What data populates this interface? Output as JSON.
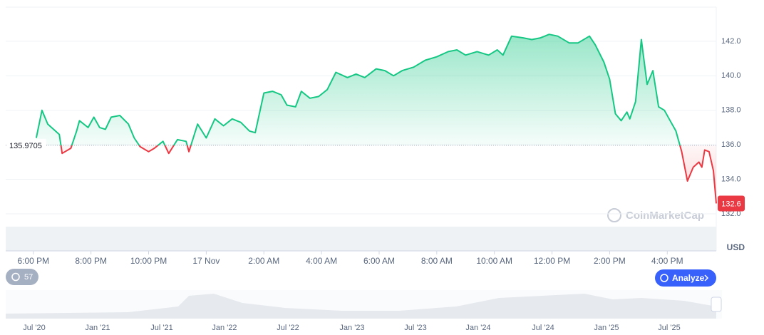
{
  "chart_data": {
    "type": "line",
    "x": [
      18.1,
      18.3,
      18.5,
      18.9,
      19.0,
      19.3,
      19.5,
      19.6,
      19.9,
      20.1,
      20.3,
      20.5,
      20.7,
      21.0,
      21.3,
      21.5,
      21.7,
      22.0,
      22.2,
      22.5,
      22.7,
      23.0,
      23.3,
      23.4,
      23.7,
      24.0,
      24.3,
      24.6,
      24.9,
      25.2,
      25.5,
      25.7,
      26.0,
      26.3,
      26.6,
      26.8,
      27.1,
      27.3,
      27.6,
      27.9,
      28.2,
      28.5,
      28.9,
      29.2,
      29.5,
      29.9,
      30.2,
      30.5,
      30.8,
      31.2,
      31.6,
      32.0,
      32.4,
      32.7,
      33.0,
      33.4,
      33.8,
      34.1,
      34.3,
      34.6,
      35.0,
      35.3,
      35.6,
      35.9,
      36.2,
      36.6,
      36.9,
      37.3,
      37.5,
      37.8,
      38.0,
      38.2,
      38.4,
      38.6,
      38.7,
      38.9,
      39.1,
      39.3,
      39.5,
      39.7,
      39.9,
      40.1,
      40.3,
      40.5,
      40.7,
      40.9,
      41.1,
      41.2,
      41.3,
      41.45,
      41.6,
      41.7
    ],
    "values": [
      136.4,
      138.0,
      137.2,
      136.6,
      135.5,
      135.8,
      136.8,
      137.4,
      137.0,
      137.6,
      137.0,
      136.9,
      137.6,
      137.7,
      137.2,
      136.4,
      135.9,
      135.6,
      135.8,
      136.2,
      135.5,
      136.3,
      136.2,
      135.6,
      137.2,
      136.4,
      137.5,
      137.1,
      137.5,
      137.3,
      136.8,
      136.7,
      139.0,
      139.1,
      138.9,
      138.3,
      138.2,
      139.1,
      138.7,
      138.8,
      139.2,
      140.2,
      139.9,
      140.1,
      139.9,
      140.4,
      140.3,
      140.0,
      140.3,
      140.5,
      140.9,
      141.1,
      141.4,
      141.5,
      141.2,
      141.4,
      141.2,
      141.5,
      141.2,
      142.3,
      142.2,
      142.1,
      142.2,
      142.4,
      142.3,
      141.9,
      141.9,
      142.3,
      141.8,
      140.8,
      139.8,
      137.8,
      137.4,
      137.9,
      137.5,
      138.5,
      142.1,
      139.5,
      140.3,
      138.2,
      138.0,
      137.4,
      136.8,
      135.6,
      133.9,
      134.7,
      135.0,
      134.7,
      135.7,
      135.6,
      134.5,
      132.6
    ],
    "color_up": "#16c784",
    "color_down": "#ea3943",
    "baseline": 135.9705,
    "current_price": 132.6,
    "currency": "USD",
    "xlim": [
      17.04,
      41.7
    ],
    "xticks": [
      {
        "value": 18,
        "label": "6:00 PM"
      },
      {
        "value": 20,
        "label": "8:00 PM"
      },
      {
        "value": 22,
        "label": "10:00 PM"
      },
      {
        "value": 24,
        "label": "17 Nov"
      },
      {
        "value": 26,
        "label": "2:00 AM"
      },
      {
        "value": 28,
        "label": "4:00 AM"
      },
      {
        "value": 30,
        "label": "6:00 AM"
      },
      {
        "value": 32,
        "label": "8:00 AM"
      },
      {
        "value": 34,
        "label": "10:00 AM"
      },
      {
        "value": 36,
        "label": "12:00 PM"
      },
      {
        "value": 38,
        "label": "2:00 PM"
      },
      {
        "value": 40,
        "label": "4:00 PM"
      }
    ],
    "ylim": [
      129.85,
      143.98
    ],
    "yticks": [
      {
        "value": 132,
        "label": "132.0"
      },
      {
        "value": 134,
        "label": "134.0"
      },
      {
        "value": 136,
        "label": "136.0"
      },
      {
        "value": 138,
        "label": "138.0"
      },
      {
        "value": 140,
        "label": "140.0"
      },
      {
        "value": 142,
        "label": "142.0"
      }
    ],
    "grid": true
  },
  "ui": {
    "watermark": "CoinMarketCap",
    "history_count": "57",
    "analyze_button": "Analyze",
    "navigator_labels": [
      "Jul '20",
      "Jan '21",
      "Jul '21",
      "Jan '22",
      "Jul '22",
      "Jan '23",
      "Jul '23",
      "Jan '24",
      "Jul '24",
      "Jan '25",
      "Jul '25"
    ]
  }
}
